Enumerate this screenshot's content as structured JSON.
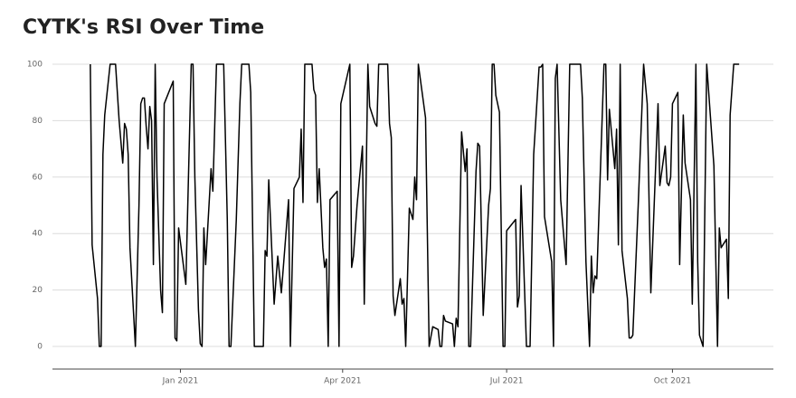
{
  "chart_data": {
    "type": "line",
    "title": "CYTK's RSI Over Time",
    "x": [
      "2020-11-12",
      "2020-11-13",
      "2020-11-16",
      "2020-11-17",
      "2020-11-18",
      "2020-11-19",
      "2020-11-20",
      "2020-11-23",
      "2020-11-26",
      "2020-11-28",
      "2020-11-30",
      "2020-12-01",
      "2020-12-02",
      "2020-12-03",
      "2020-12-04",
      "2020-12-07",
      "2020-12-09",
      "2020-12-10",
      "2020-12-11",
      "2020-12-12",
      "2020-12-13",
      "2020-12-14",
      "2020-12-15",
      "2020-12-16",
      "2020-12-17",
      "2020-12-18",
      "2020-12-19",
      "2020-12-21",
      "2020-12-22",
      "2020-12-23",
      "2020-12-28",
      "2020-12-29",
      "2020-12-30",
      "2020-12-31",
      "2021-01-04",
      "2021-01-07",
      "2021-01-08",
      "2021-01-09",
      "2021-01-11",
      "2021-01-12",
      "2021-01-13",
      "2021-01-14",
      "2021-01-15",
      "2021-01-18",
      "2021-01-19",
      "2021-01-21",
      "2021-01-25",
      "2021-01-27",
      "2021-01-28",
      "2021-01-29",
      "2021-01-31",
      "2021-02-01",
      "2021-02-03",
      "2021-02-04",
      "2021-02-08",
      "2021-02-09",
      "2021-02-11",
      "2021-02-16",
      "2021-02-17",
      "2021-02-18",
      "2021-02-19",
      "2021-02-22",
      "2021-02-24",
      "2021-02-26",
      "2021-03-02",
      "2021-03-03",
      "2021-03-05",
      "2021-03-08",
      "2021-03-09",
      "2021-03-10",
      "2021-03-11",
      "2021-03-15",
      "2021-03-16",
      "2021-03-17",
      "2021-03-18",
      "2021-03-19",
      "2021-03-21",
      "2021-03-22",
      "2021-03-23",
      "2021-03-24",
      "2021-03-25",
      "2021-03-29",
      "2021-03-30",
      "2021-03-31",
      "2021-04-05",
      "2021-04-06",
      "2021-04-07",
      "2021-04-09",
      "2021-04-12",
      "2021-04-13",
      "2021-04-15",
      "2021-04-16",
      "2021-04-19",
      "2021-04-20",
      "2021-04-21",
      "2021-04-26",
      "2021-04-27",
      "2021-04-28",
      "2021-04-29",
      "2021-04-30",
      "2021-05-03",
      "2021-05-04",
      "2021-05-05",
      "2021-05-06",
      "2021-05-08",
      "2021-05-10",
      "2021-05-11",
      "2021-05-12",
      "2021-05-13",
      "2021-05-17",
      "2021-05-19",
      "2021-05-21",
      "2021-05-24",
      "2021-05-25",
      "2021-05-26",
      "2021-05-27",
      "2021-05-28",
      "2021-06-01",
      "2021-06-02",
      "2021-06-03",
      "2021-06-04",
      "2021-06-06",
      "2021-06-08",
      "2021-06-09",
      "2021-06-10",
      "2021-06-11",
      "2021-06-14",
      "2021-06-15",
      "2021-06-16",
      "2021-06-18",
      "2021-06-21",
      "2021-06-22",
      "2021-06-23",
      "2021-06-24",
      "2021-06-25",
      "2021-06-27",
      "2021-06-29",
      "2021-06-30",
      "2021-07-01",
      "2021-07-06",
      "2021-07-07",
      "2021-07-08",
      "2021-07-09",
      "2021-07-12",
      "2021-07-14",
      "2021-07-16",
      "2021-07-19",
      "2021-07-20",
      "2021-07-21",
      "2021-07-22",
      "2021-07-26",
      "2021-07-27",
      "2021-07-28",
      "2021-07-29",
      "2021-07-31",
      "2021-08-03",
      "2021-08-05",
      "2021-08-11",
      "2021-08-12",
      "2021-08-14",
      "2021-08-16",
      "2021-08-17",
      "2021-08-18",
      "2021-08-19",
      "2021-08-20",
      "2021-08-24",
      "2021-08-25",
      "2021-08-26",
      "2021-08-27",
      "2021-08-30",
      "2021-08-31",
      "2021-09-01",
      "2021-09-02",
      "2021-09-03",
      "2021-09-06",
      "2021-09-07",
      "2021-09-08",
      "2021-09-09",
      "2021-09-12",
      "2021-09-15",
      "2021-09-17",
      "2021-09-19",
      "2021-09-23",
      "2021-09-24",
      "2021-09-27",
      "2021-09-28",
      "2021-09-29",
      "2021-09-30",
      "2021-10-01",
      "2021-10-04",
      "2021-10-05",
      "2021-10-07",
      "2021-10-08",
      "2021-10-11",
      "2021-10-12",
      "2021-10-14",
      "2021-10-15",
      "2021-10-16",
      "2021-10-18",
      "2021-10-20",
      "2021-10-24",
      "2021-10-26",
      "2021-10-27",
      "2021-10-28",
      "2021-10-31",
      "2021-11-01",
      "2021-11-02",
      "2021-11-04",
      "2021-11-07"
    ],
    "values": [
      100,
      36,
      17,
      0,
      0,
      68,
      82,
      100,
      100,
      80,
      65,
      79,
      77,
      68,
      35,
      0,
      50,
      86,
      88,
      88,
      78,
      70,
      85,
      80,
      29,
      100,
      60,
      20,
      12,
      86,
      94,
      3,
      2,
      42,
      22,
      100,
      100,
      60,
      13,
      1,
      0,
      42,
      29,
      63,
      55,
      100,
      100,
      45,
      0,
      0,
      30,
      45,
      86,
      100,
      100,
      90,
      0,
      0,
      34,
      32,
      59,
      15,
      32,
      19,
      52,
      0,
      56,
      60,
      77,
      51,
      100,
      100,
      91,
      89,
      51,
      63,
      35,
      28,
      31,
      0,
      52,
      55,
      0,
      86,
      100,
      28,
      32,
      50,
      71,
      15,
      100,
      85,
      79,
      78,
      100,
      100,
      79,
      74,
      18,
      11,
      24,
      15,
      17,
      0,
      49,
      45,
      60,
      52,
      100,
      81,
      0,
      7,
      6,
      0,
      0,
      11,
      9,
      8,
      0,
      10,
      7,
      76,
      62,
      70,
      0,
      0,
      62,
      72,
      71,
      11,
      50,
      56,
      100,
      100,
      89,
      83,
      0,
      0,
      41,
      45,
      14,
      18,
      57,
      0,
      0,
      68,
      99,
      99,
      100,
      46,
      30,
      0,
      95,
      100,
      52,
      29,
      100,
      100,
      88,
      30,
      0,
      32,
      19,
      25,
      24,
      100,
      100,
      59,
      84,
      63,
      77,
      36,
      100,
      34,
      17,
      3,
      3,
      4,
      50,
      100,
      86,
      19,
      86,
      57,
      71,
      58,
      57,
      60,
      86,
      90,
      29,
      82,
      65,
      52,
      15,
      100,
      30,
      4,
      0,
      100,
      64,
      0,
      42,
      35,
      38,
      17,
      82,
      100,
      100
    ],
    "color": "#000000",
    "xlim": [
      "2020-10-22",
      "2021-11-26"
    ],
    "xticks": [
      {
        "value": "2021-01-01",
        "label": "Jan 2021"
      },
      {
        "value": "2021-04-01",
        "label": "Apr 2021"
      },
      {
        "value": "2021-07-01",
        "label": "Jul 2021"
      },
      {
        "value": "2021-10-01",
        "label": "Oct 2021"
      }
    ],
    "ylim": [
      -8,
      104
    ],
    "yticks": [
      0,
      20,
      40,
      60,
      80,
      100
    ],
    "grid": true
  }
}
